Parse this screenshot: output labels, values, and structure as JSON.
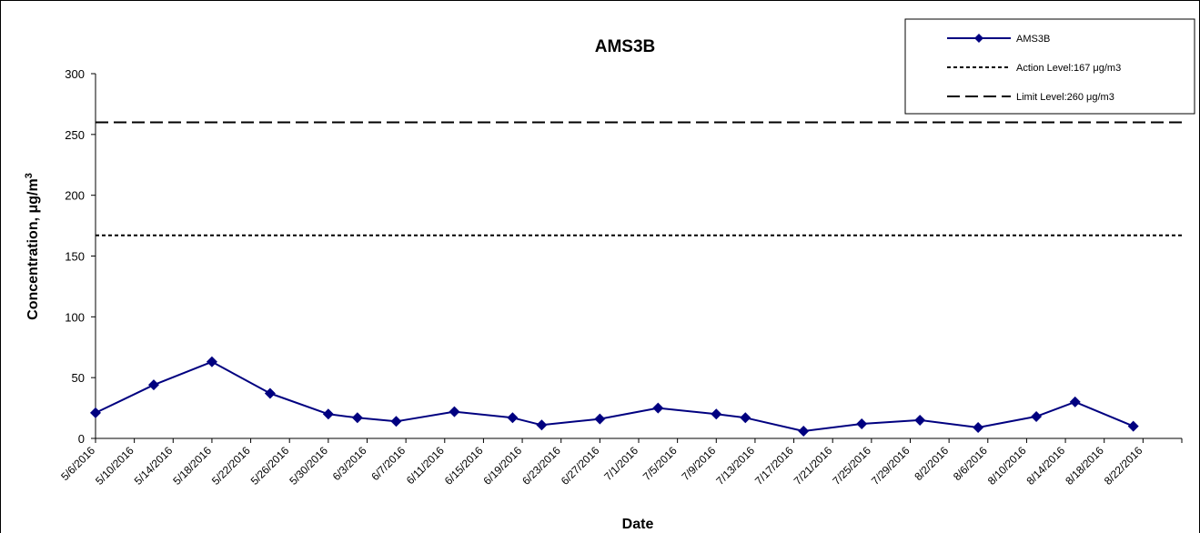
{
  "chart_data": {
    "type": "line",
    "title": "AMS3B",
    "xlabel": "Date",
    "ylabel": "Concentration, μg/m3",
    "ylabel_main": "Concentration, μg/m",
    "ylabel_superscript": "3",
    "ylim": [
      0,
      300
    ],
    "yticks": [
      0,
      50,
      100,
      150,
      200,
      250,
      300
    ],
    "x_range": [
      "5/6/2016",
      "8/26/2016"
    ],
    "x_tick_step_days": 4,
    "x_ticks": [
      "5/6/2016",
      "5/10/2016",
      "5/14/2016",
      "5/18/2016",
      "5/22/2016",
      "5/26/2016",
      "5/30/2016",
      "6/3/2016",
      "6/7/2016",
      "6/11/2016",
      "6/15/2016",
      "6/19/2016",
      "6/23/2016",
      "6/27/2016",
      "7/1/2016",
      "7/5/2016",
      "7/9/2016",
      "7/13/2016",
      "7/17/2016",
      "7/21/2016",
      "7/25/2016",
      "7/29/2016",
      "8/2/2016",
      "8/6/2016",
      "8/10/2016",
      "8/14/2016",
      "8/18/2016",
      "8/22/2016"
    ],
    "grid": false,
    "legend_position": "top-right",
    "series": [
      {
        "name": "AMS3B",
        "color": "#000080",
        "marker": "diamond",
        "x": [
          "5/6/2016",
          "5/12/2016",
          "5/18/2016",
          "5/24/2016",
          "5/30/2016",
          "6/2/2016",
          "6/6/2016",
          "6/12/2016",
          "6/18/2016",
          "6/21/2016",
          "6/27/2016",
          "7/3/2016",
          "7/9/2016",
          "7/12/2016",
          "7/18/2016",
          "7/24/2016",
          "7/30/2016",
          "8/5/2016",
          "8/11/2016",
          "8/15/2016",
          "8/21/2016"
        ],
        "values": [
          21,
          44,
          63,
          37,
          20,
          17,
          14,
          22,
          17,
          11,
          16,
          25,
          20,
          17,
          6,
          12,
          15,
          9,
          18,
          30,
          10
        ]
      }
    ],
    "reference_lines": [
      {
        "name": "Action Level:167 μg/m3",
        "value": 167,
        "dash": "short",
        "color": "#000000"
      },
      {
        "name": "Limit Level:260 μg/m3",
        "value": 260,
        "dash": "long",
        "color": "#000000"
      }
    ]
  }
}
